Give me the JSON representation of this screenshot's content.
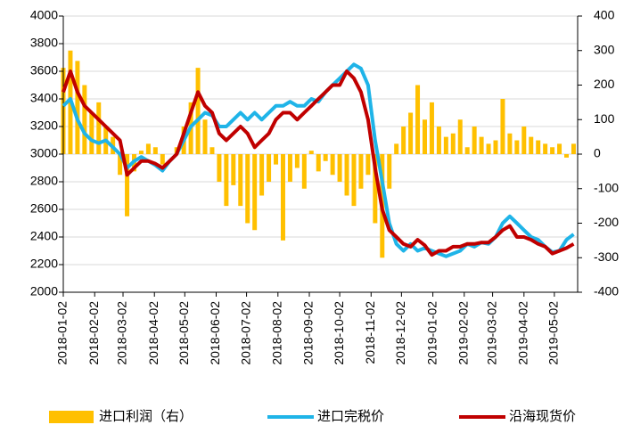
{
  "chart_data": {
    "type": "bar-line",
    "x": [
      "2018-01-02",
      "2018-01-09",
      "2018-01-16",
      "2018-01-23",
      "2018-01-30",
      "2018-02-06",
      "2018-02-13",
      "2018-02-20",
      "2018-02-27",
      "2018-03-06",
      "2018-03-13",
      "2018-03-20",
      "2018-03-27",
      "2018-04-03",
      "2018-04-10",
      "2018-04-17",
      "2018-04-24",
      "2018-05-01",
      "2018-05-08",
      "2018-05-15",
      "2018-05-22",
      "2018-05-29",
      "2018-06-05",
      "2018-06-12",
      "2018-06-19",
      "2018-06-26",
      "2018-07-03",
      "2018-07-10",
      "2018-07-17",
      "2018-07-24",
      "2018-07-31",
      "2018-08-07",
      "2018-08-14",
      "2018-08-21",
      "2018-08-28",
      "2018-09-04",
      "2018-09-11",
      "2018-09-18",
      "2018-09-25",
      "2018-10-02",
      "2018-10-09",
      "2018-10-16",
      "2018-10-23",
      "2018-10-30",
      "2018-11-06",
      "2018-11-13",
      "2018-11-20",
      "2018-11-27",
      "2018-12-04",
      "2018-12-11",
      "2018-12-18",
      "2018-12-25",
      "2019-01-01",
      "2019-01-08",
      "2019-01-15",
      "2019-01-22",
      "2019-01-29",
      "2019-02-05",
      "2019-02-12",
      "2019-02-19",
      "2019-02-26",
      "2019-03-05",
      "2019-03-12",
      "2019-03-19",
      "2019-03-26",
      "2019-04-02",
      "2019-04-09",
      "2019-04-16",
      "2019-04-23",
      "2019-04-30",
      "2019-05-07",
      "2019-05-14",
      "2019-05-21"
    ],
    "series": [
      {
        "name": "进口利润（右）",
        "color": "#ffc000",
        "axis": "y2",
        "kind": "bar",
        "values": [
          250,
          300,
          270,
          200,
          120,
          150,
          80,
          50,
          -60,
          -180,
          -50,
          10,
          30,
          20,
          -30,
          0,
          20,
          80,
          150,
          250,
          100,
          20,
          -80,
          -150,
          -90,
          -150,
          -200,
          -220,
          -120,
          -80,
          -30,
          -250,
          -80,
          -40,
          -100,
          10,
          -50,
          -20,
          -60,
          -80,
          -120,
          -150,
          -100,
          -60,
          -200,
          -300,
          -100,
          30,
          80,
          120,
          200,
          100,
          150,
          80,
          50,
          60,
          100,
          20,
          80,
          50,
          30,
          40,
          160,
          60,
          40,
          80,
          50,
          40,
          30,
          20,
          30,
          -10,
          30
        ]
      },
      {
        "name": "进口完税价",
        "color": "#1fb4e8",
        "kind": "line",
        "values": [
          3350,
          3400,
          3250,
          3150,
          3100,
          3080,
          3100,
          3050,
          3000,
          2900,
          2950,
          2980,
          2950,
          2920,
          2880,
          2950,
          3000,
          3100,
          3200,
          3250,
          3300,
          3280,
          3200,
          3200,
          3250,
          3300,
          3250,
          3300,
          3250,
          3300,
          3350,
          3350,
          3380,
          3350,
          3350,
          3400,
          3380,
          3450,
          3500,
          3550,
          3600,
          3650,
          3620,
          3500,
          3100,
          2800,
          2500,
          2350,
          2300,
          2350,
          2300,
          2320,
          2300,
          2280,
          2260,
          2280,
          2300,
          2350,
          2330,
          2360,
          2350,
          2400,
          2500,
          2550,
          2500,
          2450,
          2400,
          2380,
          2330,
          2290,
          2300,
          2380,
          2420
        ]
      },
      {
        "name": "沿海现货价",
        "color": "#c00000",
        "kind": "line",
        "values": [
          3450,
          3600,
          3450,
          3350,
          3300,
          3250,
          3200,
          3150,
          3100,
          2850,
          2900,
          2950,
          2950,
          2930,
          2900,
          2950,
          3000,
          3150,
          3300,
          3450,
          3350,
          3300,
          3150,
          3100,
          3150,
          3200,
          3150,
          3050,
          3100,
          3150,
          3250,
          3300,
          3300,
          3250,
          3300,
          3350,
          3400,
          3450,
          3500,
          3500,
          3600,
          3550,
          3450,
          3250,
          2900,
          2600,
          2450,
          2400,
          2350,
          2330,
          2380,
          2340,
          2270,
          2300,
          2300,
          2330,
          2330,
          2350,
          2350,
          2360,
          2360,
          2400,
          2450,
          2480,
          2400,
          2400,
          2380,
          2350,
          2330,
          2280,
          2300,
          2320,
          2350
        ]
      }
    ],
    "xlim": [
      "2018-01-02",
      "2019-05-25"
    ],
    "xticks": [
      "2018-01-02",
      "2018-02-02",
      "2018-03-02",
      "2018-04-02",
      "2018-05-02",
      "2018-06-02",
      "2018-07-02",
      "2018-08-02",
      "2018-09-02",
      "2018-10-02",
      "2018-11-02",
      "2018-12-02",
      "2019-01-02",
      "2019-02-02",
      "2019-03-02",
      "2019-04-02",
      "2019-05-02"
    ],
    "ylim": [
      2000,
      4000
    ],
    "yticks": [
      2000,
      2200,
      2400,
      2600,
      2800,
      3000,
      3200,
      3400,
      3600,
      3800,
      4000
    ],
    "y2lim": [
      -400,
      400
    ],
    "y2ticks": [
      -400,
      -300,
      -200,
      -100,
      0,
      100,
      200,
      300,
      400
    ],
    "negative_tick_color": "#ff0000",
    "grid": true
  }
}
